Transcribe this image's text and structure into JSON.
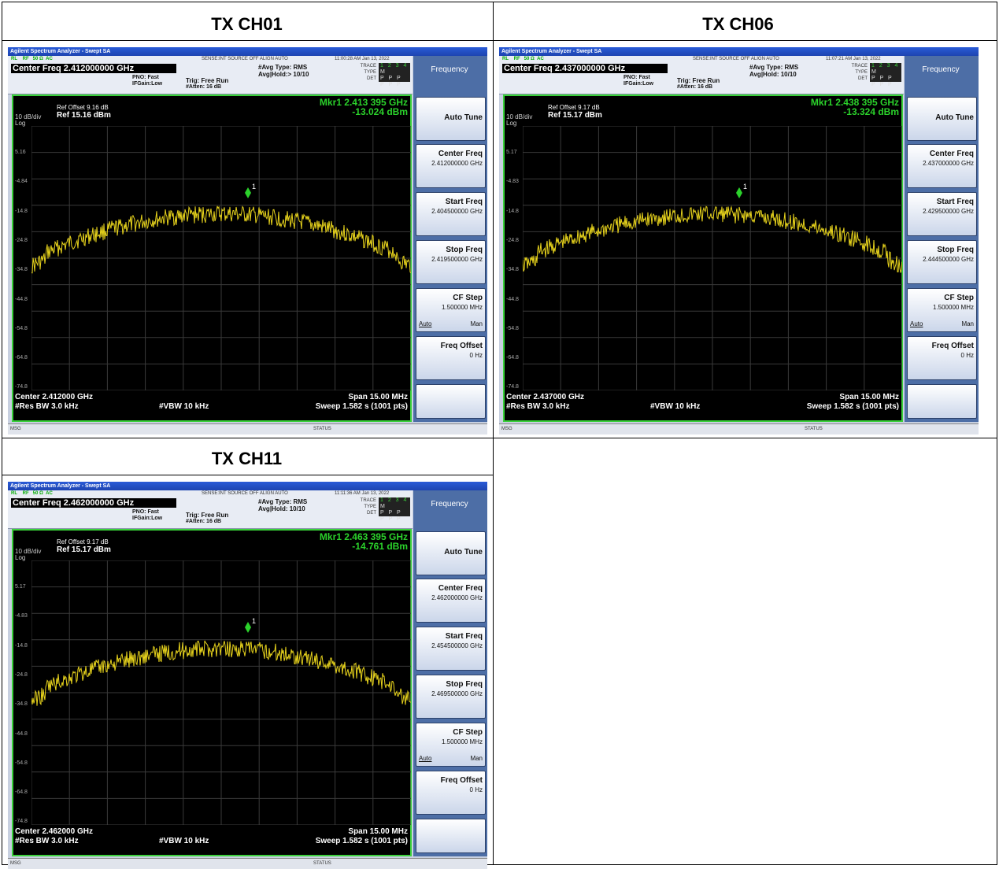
{
  "colors": {
    "trace": "#e6d21c",
    "marker": "#2bd22b",
    "screen": "#000000",
    "grid": "#3a3a3a"
  },
  "panels": [
    {
      "title": "TX CH01",
      "window_title": "Agilent Spectrum Analyzer - Swept SA",
      "status_strip": "SENSE:INT   SOURCE OFF       ALIGN AUTO",
      "timestamp": "11:00:28 AM Jan 13, 2022",
      "center_freq_banner": "Center Freq 2.412000000 GHz",
      "pno": "PNO: Fast",
      "ifgain": "IFGain:Low",
      "trig": "Trig: Free Run",
      "atten": "#Atten: 16 dB",
      "avg_type": "#Avg Type: RMS",
      "avg_hold": "Avg|Hold:> 10/10",
      "ref_offset": "Ref Offset 9.16 dB",
      "ref": "Ref 15.16 dBm",
      "scale": "10 dB/div",
      "log": "Log",
      "marker_freq": "Mkr1 2.413 395 GHz",
      "marker_amp": "-13.024 dBm",
      "y_labels": [
        "5.16",
        "-4.84",
        "-14.8",
        "-24.8",
        "-34.8",
        "-44.8",
        "-54.8",
        "-64.8",
        "-74.8"
      ],
      "center": "Center 2.412000 GHz",
      "span": "Span 15.00 MHz",
      "rbw": "#Res BW 3.0 kHz",
      "vbw": "#VBW 10 kHz",
      "sweep": "Sweep  1.582 s (1001 pts)",
      "menu_title": "Frequency",
      "auto_tune": "Auto Tune",
      "center_freq_label": "Center Freq",
      "center_freq_value": "2.412000000 GHz",
      "start_freq_label": "Start Freq",
      "start_freq_value": "2.404500000 GHz",
      "stop_freq_label": "Stop Freq",
      "stop_freq_value": "2.419500000 GHz",
      "cf_step_label": "CF Step",
      "cf_step_value": "1.500000 MHz",
      "auto": "Auto",
      "man": "Man",
      "freq_offset_label": "Freq Offset",
      "freq_offset_value": "0 Hz",
      "msg": "MSG",
      "status": "STATUS"
    },
    {
      "title": "TX CH06",
      "window_title": "Agilent Spectrum Analyzer - Swept SA",
      "status_strip": "SENSE:INT   SOURCE OFF       ALIGN AUTO",
      "timestamp": "11:07:21 AM Jan 13, 2022",
      "center_freq_banner": "Center Freq 2.437000000 GHz",
      "pno": "PNO: Fast",
      "ifgain": "IFGain:Low",
      "trig": "Trig: Free Run",
      "atten": "#Atten: 16 dB",
      "avg_type": "#Avg Type: RMS",
      "avg_hold": "Avg|Hold: 10/10",
      "ref_offset": "Ref Offset 9.17 dB",
      "ref": "Ref 15.17 dBm",
      "scale": "10 dB/div",
      "log": "Log",
      "marker_freq": "Mkr1 2.438 395 GHz",
      "marker_amp": "-13.324 dBm",
      "y_labels": [
        "5.17",
        "-4.83",
        "-14.8",
        "-24.8",
        "-34.8",
        "-44.8",
        "-54.8",
        "-64.8",
        "-74.8"
      ],
      "center": "Center 2.437000 GHz",
      "span": "Span 15.00 MHz",
      "rbw": "#Res BW 3.0 kHz",
      "vbw": "#VBW 10 kHz",
      "sweep": "Sweep  1.582 s (1001 pts)",
      "menu_title": "Frequency",
      "auto_tune": "Auto Tune",
      "center_freq_label": "Center Freq",
      "center_freq_value": "2.437000000 GHz",
      "start_freq_label": "Start Freq",
      "start_freq_value": "2.429500000 GHz",
      "stop_freq_label": "Stop Freq",
      "stop_freq_value": "2.444500000 GHz",
      "cf_step_label": "CF Step",
      "cf_step_value": "1.500000 MHz",
      "auto": "Auto",
      "man": "Man",
      "freq_offset_label": "Freq Offset",
      "freq_offset_value": "0 Hz",
      "msg": "MSG",
      "status": "STATUS"
    },
    {
      "title": "TX CH11",
      "window_title": "Agilent Spectrum Analyzer - Swept SA",
      "status_strip": "SENSE:INT   SOURCE OFF       ALIGN AUTO",
      "timestamp": "11:11:36 AM Jan 13, 2022",
      "center_freq_banner": "Center Freq 2.462000000 GHz",
      "pno": "PNO: Fast",
      "ifgain": "IFGain:Low",
      "trig": "Trig: Free Run",
      "atten": "#Atten: 16 dB",
      "avg_type": "#Avg Type: RMS",
      "avg_hold": "Avg|Hold: 10/10",
      "ref_offset": "Ref Offset 9.17 dB",
      "ref": "Ref 15.17 dBm",
      "scale": "10 dB/div",
      "log": "Log",
      "marker_freq": "Mkr1 2.463 395 GHz",
      "marker_amp": "-14.761 dBm",
      "y_labels": [
        "5.17",
        "-4.83",
        "-14.8",
        "-24.8",
        "-34.8",
        "-44.8",
        "-54.8",
        "-64.8",
        "-74.8"
      ],
      "center": "Center 2.462000 GHz",
      "span": "Span 15.00 MHz",
      "rbw": "#Res BW 3.0 kHz",
      "vbw": "#VBW 10 kHz",
      "sweep": "Sweep  1.582 s (1001 pts)",
      "menu_title": "Frequency",
      "auto_tune": "Auto Tune",
      "center_freq_label": "Center Freq",
      "center_freq_value": "2.462000000 GHz",
      "start_freq_label": "Start Freq",
      "start_freq_value": "2.454500000 GHz",
      "stop_freq_label": "Stop Freq",
      "stop_freq_value": "2.469500000 GHz",
      "cf_step_label": "CF Step",
      "cf_step_value": "1.500000 MHz",
      "auto": "Auto",
      "man": "Man",
      "freq_offset_label": "Freq Offset",
      "freq_offset_value": "0 Hz",
      "msg": "MSG",
      "status": "STATUS"
    }
  ]
}
